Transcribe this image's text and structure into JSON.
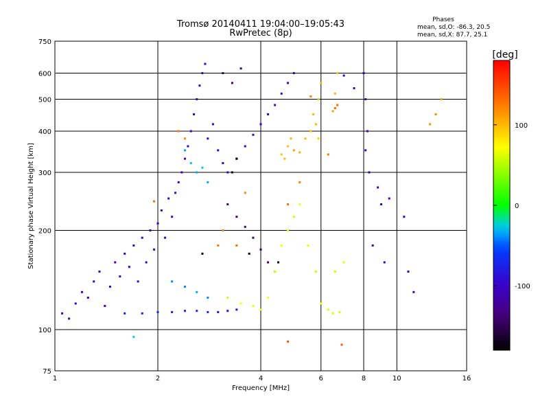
{
  "chart_data": {
    "type": "scatter",
    "title": "Tromsø 20140411 19:04:00–19:05:43",
    "subtitle": "RwPretec (8p)",
    "stats": {
      "heading": "Phases",
      "line_o": "mean, sd,O: -86.3, 20.5",
      "line_x": "mean, sd,X:  87.7, 25.1"
    },
    "xlabel": "Frequency [MHz]",
    "ylabel": "Stationary phase Virtual Height [km]",
    "x_scale": "log",
    "y_scale": "log",
    "xlim": [
      1,
      16
    ],
    "ylim": [
      75,
      750
    ],
    "x_ticks": [
      1,
      2,
      4,
      6,
      8,
      10,
      16
    ],
    "y_ticks": [
      75,
      100,
      200,
      300,
      400,
      500,
      600,
      750
    ],
    "x_gridlines": [
      2,
      4,
      6,
      8,
      10
    ],
    "y_gridlines": [
      100,
      200,
      300,
      400,
      500,
      600
    ],
    "colorbar": {
      "label": "[deg]",
      "range": [
        -180,
        180
      ],
      "ticks": [
        100,
        0,
        -100
      ]
    },
    "series": [
      {
        "points": [
          [
            1.05,
            112,
            -100
          ],
          [
            1.1,
            108,
            -95
          ],
          [
            1.15,
            120,
            -105
          ],
          [
            1.2,
            130,
            -100
          ],
          [
            1.25,
            125,
            -110
          ],
          [
            1.3,
            140,
            -100
          ],
          [
            1.35,
            150,
            -95
          ],
          [
            1.4,
            118,
            -110
          ],
          [
            1.45,
            135,
            -100
          ],
          [
            1.5,
            160,
            -105
          ],
          [
            1.55,
            145,
            -100
          ],
          [
            1.6,
            170,
            -110
          ],
          [
            1.65,
            155,
            -100
          ],
          [
            1.7,
            180,
            -95
          ],
          [
            1.75,
            140,
            -105
          ],
          [
            1.8,
            190,
            -100
          ],
          [
            1.85,
            160,
            -110
          ],
          [
            1.9,
            200,
            -100
          ],
          [
            1.95,
            175,
            -95
          ],
          [
            2.0,
            210,
            -100
          ],
          [
            2.05,
            230,
            -110
          ],
          [
            2.1,
            190,
            -100
          ],
          [
            2.15,
            250,
            -105
          ],
          [
            2.2,
            220,
            -100
          ],
          [
            2.25,
            260,
            -95
          ],
          [
            2.3,
            280,
            -100
          ],
          [
            2.35,
            300,
            -110
          ],
          [
            2.4,
            330,
            -100
          ],
          [
            2.45,
            360,
            -95
          ],
          [
            2.5,
            400,
            -100
          ],
          [
            2.55,
            450,
            -105
          ],
          [
            2.6,
            500,
            -100
          ],
          [
            2.65,
            550,
            -95
          ],
          [
            2.7,
            600,
            -100
          ],
          [
            2.75,
            640,
            -105
          ],
          [
            2.8,
            380,
            -100
          ],
          [
            2.9,
            420,
            -95
          ],
          [
            3.0,
            350,
            -100
          ],
          [
            3.1,
            320,
            -110
          ],
          [
            3.2,
            300,
            -100
          ],
          [
            3.4,
            330,
            -105
          ],
          [
            3.6,
            360,
            -100
          ],
          [
            3.8,
            390,
            -95
          ],
          [
            4.0,
            420,
            -100
          ],
          [
            4.2,
            450,
            -105
          ],
          [
            4.4,
            480,
            -100
          ],
          [
            4.6,
            520,
            -95
          ],
          [
            4.8,
            560,
            -100
          ],
          [
            5.0,
            600,
            -105
          ]
        ]
      },
      {
        "points": [
          [
            1.6,
            112,
            -70
          ],
          [
            1.8,
            112,
            -75
          ],
          [
            2.0,
            113,
            -70
          ],
          [
            2.2,
            113,
            -75
          ],
          [
            2.4,
            114,
            -70
          ],
          [
            2.6,
            114,
            -75
          ],
          [
            2.8,
            113,
            -70
          ],
          [
            3.0,
            113,
            -90
          ],
          [
            3.2,
            114,
            -90
          ],
          [
            3.4,
            115,
            -90
          ]
        ]
      },
      {
        "points": [
          [
            2.4,
            350,
            -35
          ],
          [
            2.5,
            320,
            -30
          ],
          [
            2.6,
            300,
            -35
          ],
          [
            2.7,
            310,
            -30
          ],
          [
            2.8,
            280,
            -35
          ],
          [
            2.2,
            140,
            -40
          ],
          [
            2.4,
            135,
            -40
          ],
          [
            2.6,
            130,
            -35
          ],
          [
            2.8,
            125,
            -40
          ]
        ]
      },
      {
        "points": [
          [
            3.1,
            600,
            -140
          ],
          [
            3.3,
            560,
            -145
          ],
          [
            3.5,
            620,
            -140
          ],
          [
            3.2,
            240,
            -140
          ],
          [
            3.4,
            220,
            -145
          ],
          [
            3.6,
            205,
            -140
          ],
          [
            3.8,
            190,
            -140
          ],
          [
            4.0,
            175,
            -145
          ],
          [
            4.2,
            160,
            -140
          ],
          [
            4.4,
            150,
            -145
          ]
        ]
      },
      {
        "points": [
          [
            3.2,
            125,
            60
          ],
          [
            3.5,
            120,
            70
          ],
          [
            3.8,
            118,
            65
          ],
          [
            4.0,
            115,
            75
          ],
          [
            4.2,
            125,
            70
          ],
          [
            4.4,
            150,
            60
          ],
          [
            4.6,
            180,
            70
          ],
          [
            4.8,
            200,
            65
          ],
          [
            5.0,
            220,
            60
          ],
          [
            5.2,
            240,
            70
          ],
          [
            5.5,
            180,
            65
          ],
          [
            5.8,
            150,
            60
          ],
          [
            6.0,
            120,
            70
          ],
          [
            6.3,
            115,
            60
          ],
          [
            6.5,
            112,
            65
          ],
          [
            6.8,
            113,
            60
          ],
          [
            7.0,
            160,
            65
          ],
          [
            6.6,
            150,
            60
          ]
        ]
      },
      {
        "points": [
          [
            4.6,
            340,
            95
          ],
          [
            4.7,
            330,
            100
          ],
          [
            4.8,
            360,
            95
          ],
          [
            4.9,
            380,
            100
          ],
          [
            5.0,
            350,
            110
          ],
          [
            5.2,
            345,
            105
          ],
          [
            5.4,
            380,
            100
          ],
          [
            5.6,
            400,
            95
          ],
          [
            5.8,
            420,
            100
          ],
          [
            5.9,
            380,
            90
          ],
          [
            5.7,
            450,
            100
          ],
          [
            5.9,
            500,
            95
          ],
          [
            6.0,
            560,
            100
          ],
          [
            6.6,
            520,
            100
          ],
          [
            6.7,
            600,
            95
          ],
          [
            6.5,
            460,
            110
          ]
        ]
      },
      {
        "points": [
          [
            3.0,
            180,
            125
          ],
          [
            3.1,
            200,
            120
          ],
          [
            4.8,
            240,
            130
          ],
          [
            5.2,
            280,
            125
          ],
          [
            6.6,
            470,
            130
          ],
          [
            6.7,
            480,
            135
          ],
          [
            5.6,
            510,
            125
          ],
          [
            3.4,
            180,
            130
          ],
          [
            2.4,
            380,
            120
          ],
          [
            2.3,
            400,
            125
          ],
          [
            1.95,
            245,
            130
          ],
          [
            3.6,
            260,
            120
          ],
          [
            6.3,
            340,
            125
          ]
        ]
      },
      {
        "points": [
          [
            2.7,
            170,
            -180
          ],
          [
            3.3,
            300,
            -175
          ],
          [
            3.7,
            170,
            -180
          ],
          [
            3.4,
            330,
            -180
          ],
          [
            4.5,
            160,
            -175
          ]
        ]
      },
      {
        "points": [
          [
            8.0,
            600,
            -110
          ],
          [
            8.1,
            500,
            -105
          ],
          [
            8.2,
            400,
            -110
          ],
          [
            8.1,
            350,
            -105
          ],
          [
            8.3,
            300,
            -110
          ],
          [
            8.8,
            270,
            -100
          ],
          [
            9.0,
            240,
            -105
          ],
          [
            9.5,
            250,
            -100
          ],
          [
            10.5,
            220,
            -105
          ],
          [
            10.8,
            150,
            -100
          ],
          [
            11.2,
            130,
            -105
          ],
          [
            8.5,
            180,
            -110
          ],
          [
            9.2,
            160,
            -100
          ],
          [
            7.5,
            540,
            -105
          ],
          [
            7.0,
            590,
            -110
          ]
        ]
      },
      {
        "points": [
          [
            13.0,
            450,
            120
          ],
          [
            12.5,
            420,
            115
          ],
          [
            13.5,
            500,
            110
          ],
          [
            6.9,
            90,
            140
          ],
          [
            4.8,
            92,
            140
          ],
          [
            1.7,
            95,
            -30
          ]
        ]
      }
    ]
  }
}
